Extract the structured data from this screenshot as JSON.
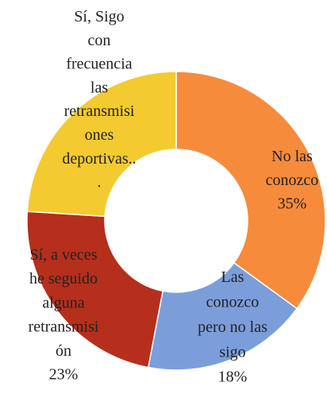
{
  "chart_data": {
    "type": "pie",
    "categories": [
      "No las conozco",
      "Las conozco pero no las sigo",
      "Sí, a veces he seguido alguna retransmisión",
      "Sí, Sigo con frecuencia las retransmisiones deportivas..."
    ],
    "values": [
      35,
      18,
      23,
      24
    ],
    "value_labels": [
      "35%",
      "18%",
      "23%",
      null
    ],
    "colors": [
      "#f68b3b",
      "#7b9edb",
      "#b52f1c",
      "#f3ca30"
    ],
    "donut": true
  }
}
